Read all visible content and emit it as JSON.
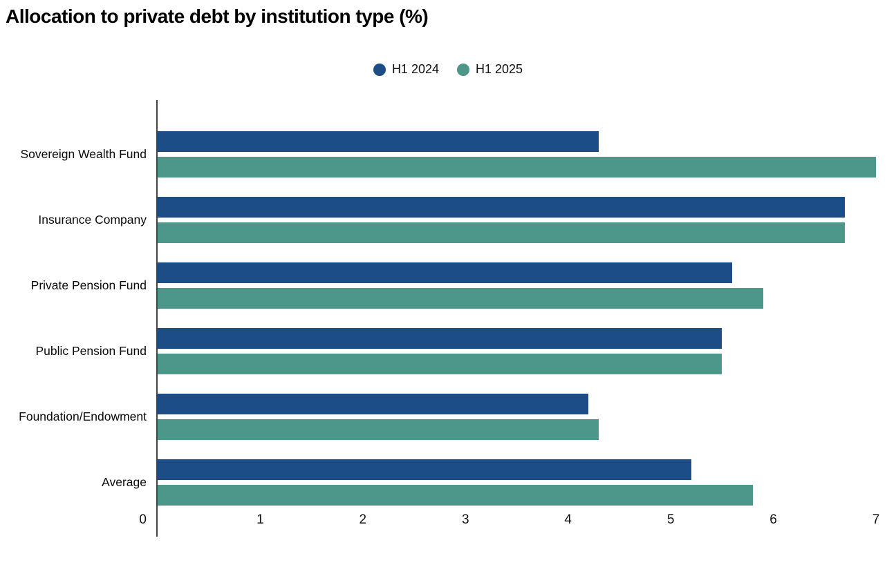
{
  "title": "Allocation to private debt by institution type (%)",
  "legend": [
    {
      "label": "H1 2024",
      "color": "#1d4d86"
    },
    {
      "label": "H1 2025",
      "color": "#4c968a"
    }
  ],
  "colors": {
    "h1_2024": "#1d4d86",
    "h1_2025": "#4c968a",
    "axis_line": "#444444",
    "text": "#000000"
  },
  "chart_data": {
    "type": "bar",
    "orientation": "horizontal",
    "title": "Allocation to private debt by institution type (%)",
    "categories": [
      "Sovereign Wealth Fund",
      "Insurance Company",
      "Private Pension Fund",
      "Public Pension Fund",
      "Foundation/Endowment",
      "Average"
    ],
    "series": [
      {
        "name": "H1 2024",
        "color": "#1d4d86",
        "values": [
          4.3,
          6.7,
          5.6,
          5.5,
          4.2,
          5.2
        ]
      },
      {
        "name": "H1 2025",
        "color": "#4c968a",
        "values": [
          7.0,
          6.7,
          5.9,
          5.5,
          4.3,
          5.8
        ]
      }
    ],
    "xlabel": "",
    "ylabel": "",
    "xlim": [
      0,
      7
    ],
    "xticks": [
      0,
      1,
      2,
      3,
      4,
      5,
      6,
      7
    ],
    "grid": false,
    "legend_position": "top-center"
  }
}
